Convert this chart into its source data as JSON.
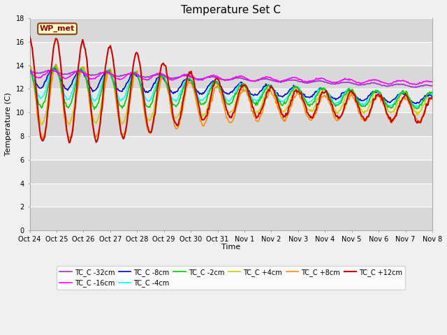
{
  "title": "Temperature Set C",
  "xlabel": "Time",
  "ylabel": "Temperature (C)",
  "ylim": [
    0,
    18
  ],
  "yticks": [
    0,
    2,
    4,
    6,
    8,
    10,
    12,
    14,
    16,
    18
  ],
  "background_color": "#f0f0f0",
  "plot_bg_color": "#e8e8e8",
  "annotation_text": "WP_met",
  "annotation_box_color": "#ffffcc",
  "annotation_border_color": "#8B4513",
  "annotation_text_color": "#8B0000",
  "series": [
    {
      "label": "TC_C -32cm",
      "color": "#9932CC",
      "linewidth": 1.2,
      "zorder": 5
    },
    {
      "label": "TC_C -16cm",
      "color": "#FF00FF",
      "linewidth": 1.2,
      "zorder": 5
    },
    {
      "label": "TC_C -8cm",
      "color": "#0000CD",
      "linewidth": 1.2,
      "zorder": 4
    },
    {
      "label": "TC_C -4cm",
      "color": "#00FFFF",
      "linewidth": 1.2,
      "zorder": 4
    },
    {
      "label": "TC_C -2cm",
      "color": "#00CC00",
      "linewidth": 1.2,
      "zorder": 4
    },
    {
      "label": "TC_C +4cm",
      "color": "#CCCC00",
      "linewidth": 1.2,
      "zorder": 3
    },
    {
      "label": "TC_C +8cm",
      "color": "#FF8C00",
      "linewidth": 1.2,
      "zorder": 3
    },
    {
      "label": "TC_C +12cm",
      "color": "#CC0000",
      "linewidth": 1.5,
      "zorder": 6
    }
  ],
  "x_tick_labels": [
    "Oct 24",
    "Oct 25",
    "Oct 26",
    "Oct 27",
    "Oct 28",
    "Oct 29",
    "Oct 30",
    "Oct 31",
    "Nov 1",
    "Nov 2",
    "Nov 3",
    "Nov 4",
    "Nov 5",
    "Nov 6",
    "Nov 7",
    "Nov 8"
  ],
  "n_points": 480,
  "figsize": [
    6.4,
    4.8
  ],
  "dpi": 100
}
